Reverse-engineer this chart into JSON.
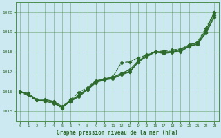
{
  "xlabel": "Graphe pression niveau de la mer (hPa)",
  "xlim": [
    -0.5,
    23.5
  ],
  "ylim": [
    1014.5,
    1020.5
  ],
  "yticks": [
    1015,
    1016,
    1017,
    1018,
    1019,
    1020
  ],
  "xticks": [
    0,
    1,
    2,
    3,
    4,
    5,
    6,
    7,
    8,
    9,
    10,
    11,
    12,
    13,
    14,
    15,
    16,
    17,
    18,
    19,
    20,
    21,
    22,
    23
  ],
  "bg_color": "#cce8f0",
  "grid_color": "#4d8f4d",
  "line_color": "#2d6b2d",
  "series1_x": [
    0,
    1,
    2,
    3,
    4,
    5,
    6,
    7,
    8,
    9,
    10,
    11,
    12,
    13,
    14,
    15,
    16,
    17,
    18,
    19,
    20,
    21,
    22,
    23
  ],
  "series1_y": [
    1016.0,
    1015.85,
    1015.55,
    1015.55,
    1015.45,
    1015.2,
    1015.5,
    1015.8,
    1016.1,
    1016.5,
    1016.6,
    1016.7,
    1016.9,
    1017.0,
    1017.5,
    1017.75,
    1018.0,
    1017.95,
    1018.0,
    1018.05,
    1018.3,
    1018.4,
    1019.0,
    1019.85
  ],
  "series2_x": [
    0,
    1,
    2,
    3,
    4,
    5,
    6,
    7,
    8,
    9,
    10,
    11,
    12,
    13,
    14,
    15,
    16,
    17,
    18,
    19,
    20,
    21,
    22,
    23
  ],
  "series2_y": [
    1016.0,
    1015.9,
    1015.6,
    1015.6,
    1015.5,
    1015.25,
    1015.55,
    1015.82,
    1016.15,
    1016.52,
    1016.65,
    1016.72,
    1016.92,
    1017.1,
    1017.55,
    1017.82,
    1018.02,
    1018.0,
    1018.02,
    1018.1,
    1018.35,
    1018.45,
    1019.1,
    1020.0
  ],
  "series3_x": [
    0,
    2,
    3,
    4,
    5,
    6,
    7,
    8,
    9,
    10,
    11,
    12,
    13,
    14,
    15,
    16,
    17,
    18,
    19,
    20,
    21,
    22,
    23
  ],
  "series3_y": [
    1016.0,
    1015.55,
    1015.55,
    1015.45,
    1015.15,
    1015.6,
    1015.95,
    1016.2,
    1016.55,
    1016.62,
    1016.75,
    1017.45,
    1017.5,
    1017.7,
    1017.85,
    1018.0,
    1018.05,
    1018.1,
    1018.15,
    1018.35,
    1018.5,
    1019.2,
    1020.0
  ],
  "series4_x": [
    0,
    1,
    2,
    3,
    4,
    5,
    6,
    7,
    8,
    9,
    10,
    11,
    12,
    13,
    14,
    15,
    16,
    17,
    18,
    19,
    20,
    21,
    22,
    23
  ],
  "series4_y": [
    1016.0,
    1015.85,
    1015.55,
    1015.5,
    1015.4,
    1015.2,
    1015.5,
    1015.75,
    1016.08,
    1016.45,
    1016.58,
    1016.65,
    1016.85,
    1016.98,
    1017.48,
    1017.82,
    1018.0,
    1017.92,
    1017.98,
    1018.0,
    1018.28,
    1018.38,
    1018.95,
    1019.75
  ]
}
